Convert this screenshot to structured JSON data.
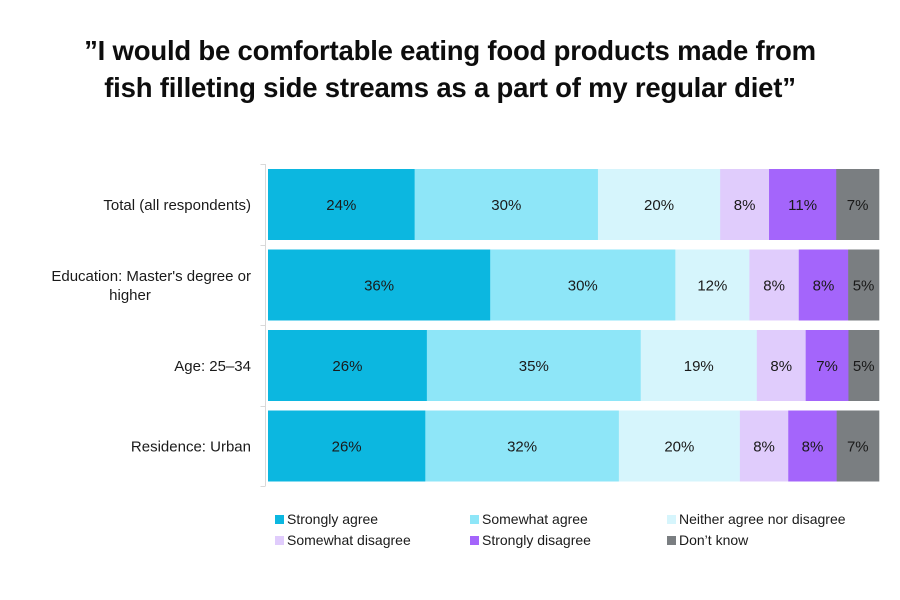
{
  "chart_data": {
    "type": "bar",
    "orientation": "horizontal",
    "stacked": true,
    "normalized": true,
    "title": "”I would be comfortable eating food products made from fish filleting side streams as a part of my regular diet”",
    "title_lines": [
      "”I would be comfortable eating food products made from",
      "fish filleting side streams as a part of my regular diet”"
    ],
    "xlabel": "",
    "ylabel": "",
    "grid": false,
    "value_format": "percent",
    "categories": [
      {
        "label_lines": [
          "Total (all respondents)"
        ]
      },
      {
        "label_lines": [
          "Education: Master's degree or",
          "higher"
        ]
      },
      {
        "label_lines": [
          "Age: 25–34 "
        ]
      },
      {
        "label_lines": [
          "Residence: Urban"
        ]
      }
    ],
    "category_names": [
      "Total (all respondents)",
      "Education: Master's degree or higher",
      "Age: 25–34",
      "Residence: Urban"
    ],
    "series": [
      {
        "name": "Strongly agree",
        "color": "#0cb7e0",
        "values": [
          24,
          36,
          26,
          26
        ]
      },
      {
        "name": "Somewhat agree",
        "color": "#8ee6f8",
        "values": [
          30,
          30,
          35,
          32
        ]
      },
      {
        "name": "Neither agree nor disagree",
        "color": "#d6f5fc",
        "values": [
          20,
          12,
          19,
          20
        ]
      },
      {
        "name": "Somewhat disagree",
        "color": "#e0ccfc",
        "values": [
          8,
          8,
          8,
          8
        ]
      },
      {
        "name": "Strongly disagree",
        "color": "#a465fb",
        "values": [
          11,
          8,
          7,
          8
        ]
      },
      {
        "name": "Don’t know",
        "color": "#7a7e81",
        "values": [
          7,
          5,
          5,
          7
        ]
      }
    ],
    "legend": {
      "placement": "bottom",
      "entries": [
        "Strongly agree",
        "Somewhat agree",
        "Neither agree nor disagree",
        "Somewhat disagree",
        "Strongly disagree",
        "Don’t know"
      ]
    },
    "axis_color": "#d9d9d9"
  }
}
